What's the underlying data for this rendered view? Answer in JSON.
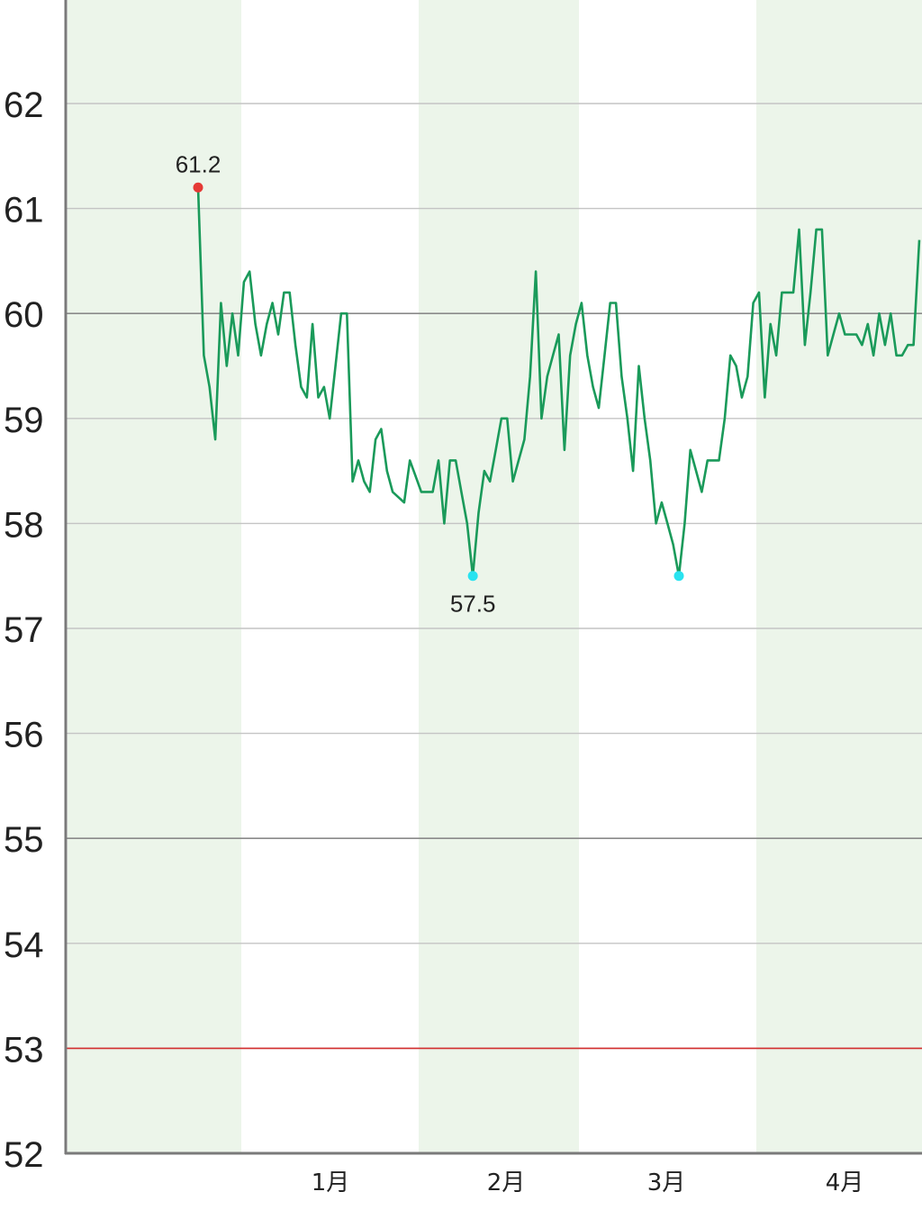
{
  "chart_data": {
    "type": "line",
    "title": "",
    "xlabel": "",
    "ylabel": "",
    "ylim": [
      52,
      63
    ],
    "yticks": [
      52,
      53,
      54,
      55,
      56,
      57,
      58,
      59,
      60,
      61,
      62
    ],
    "grid": true,
    "target_line": {
      "value": 53,
      "color": "#d32f2f"
    },
    "band_colors": {
      "shaded": "#ecf5ea",
      "plain": "#ffffff"
    },
    "line_color": "#1a9a5a",
    "x_tick_labels": [
      "1月",
      "2月",
      "3月",
      "4月"
    ],
    "series": [
      {
        "values": [
          61.2,
          59.6,
          59.3,
          58.8,
          60.1,
          59.5,
          60.0,
          59.6,
          60.3,
          60.4,
          59.9,
          59.6,
          59.9,
          60.1,
          59.8,
          60.2,
          60.2,
          59.7,
          59.3,
          59.2,
          59.9,
          59.2,
          59.3,
          59.0,
          59.5,
          60.0,
          60.0,
          58.4,
          58.6,
          58.4,
          58.3,
          58.8,
          58.9,
          58.5,
          58.3,
          58.25,
          58.2,
          58.6,
          58.45,
          58.3,
          58.3,
          58.3,
          58.6,
          58.0,
          58.6,
          58.6,
          58.3,
          58.0,
          57.5,
          58.1,
          58.5,
          58.4,
          58.7,
          59.0,
          59.0,
          58.4,
          58.6,
          58.8,
          59.4,
          60.4,
          59.0,
          59.4,
          59.6,
          59.8,
          58.7,
          59.6,
          59.9,
          60.1,
          59.6,
          59.3,
          59.1,
          59.6,
          60.1,
          60.1,
          59.4,
          59.0,
          58.5,
          59.5,
          59.0,
          58.6,
          58.0,
          58.2,
          58.0,
          57.8,
          57.5,
          58.0,
          58.7,
          58.5,
          58.3,
          58.6,
          58.6,
          58.6,
          59.0,
          59.6,
          59.5,
          59.2,
          59.4,
          60.1,
          60.2,
          59.2,
          59.9,
          59.6,
          60.2,
          60.2,
          60.2,
          60.8,
          59.7,
          60.2,
          60.8,
          60.8,
          59.6,
          59.8,
          60.0,
          59.8,
          59.8,
          59.8,
          59.7,
          59.9,
          59.6,
          60.0,
          59.7,
          60.0,
          59.6,
          59.6,
          59.7,
          59.7,
          60.7
        ]
      }
    ],
    "annotations": [
      {
        "label": "61.2",
        "value": 61.2,
        "marker_color": "#e53935"
      },
      {
        "label": "57.5",
        "value": 57.5,
        "marker_color": "#29e3f0"
      },
      {
        "label": "",
        "value": 57.5,
        "marker_color": "#29e3f0"
      }
    ]
  }
}
